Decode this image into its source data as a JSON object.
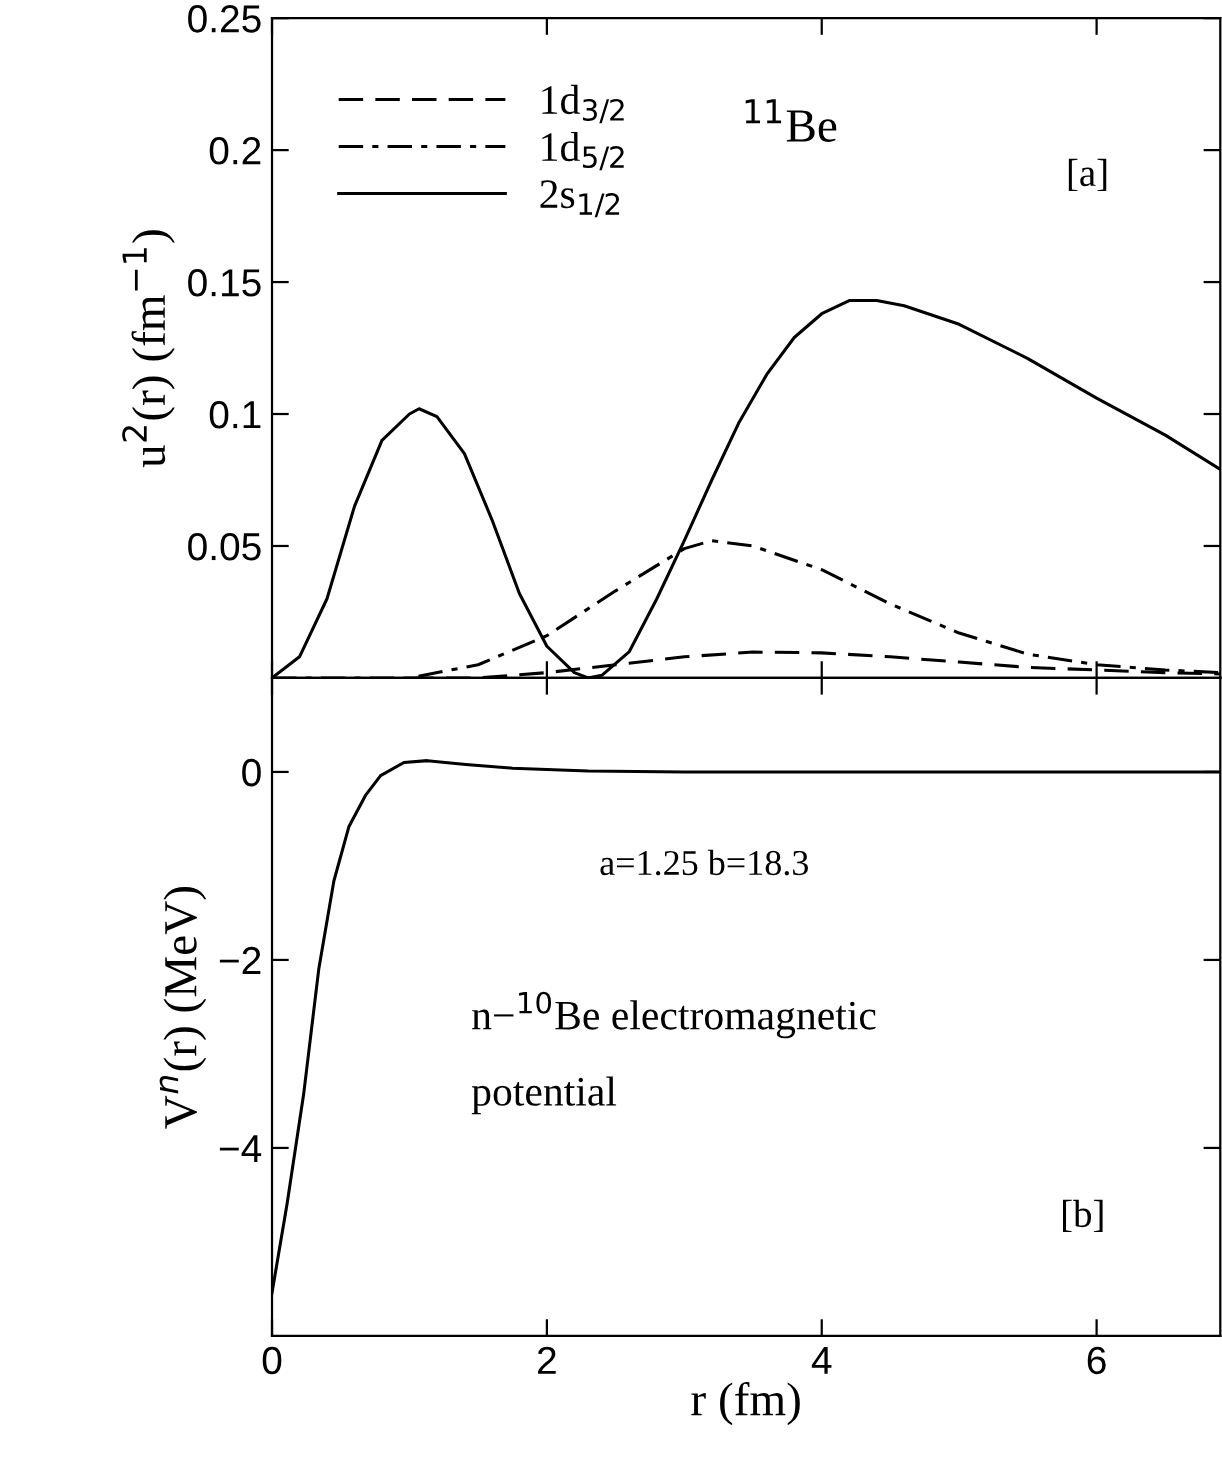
{
  "chart_data": [
    {
      "type": "line",
      "ylabel": "u$^{2}$(r) (fm$^{−1}$)",
      "xlim": [
        0,
        6.9
      ],
      "ylim": [
        0,
        0.25
      ],
      "xticks": [
        0,
        2,
        4,
        6
      ],
      "yticks": [
        0.05,
        0.1,
        0.15,
        0.2,
        0.25
      ],
      "tick_labels": "y",
      "legend": "top left",
      "grid": false,
      "annotations": [
        "$^{11}$Be",
        "[a]"
      ],
      "series": [
        {
          "name": "1d$_{3/2}$",
          "color": "#000000",
          "line_style": "dashed",
          "x": [
            1.0,
            1.5,
            2.0,
            2.5,
            3.0,
            3.5,
            4.0,
            4.5,
            5.0,
            5.5,
            6.0,
            6.5,
            6.9
          ],
          "values": [
            0,
            0,
            0.002,
            0.005,
            0.008,
            0.0098,
            0.0095,
            0.008,
            0.006,
            0.004,
            0.003,
            0.002,
            0.0015
          ]
        },
        {
          "name": "1d$_{5/2}$",
          "color": "#000000",
          "line_style": "dashdot",
          "x": [
            0,
            1.0,
            1.5,
            2.0,
            2.5,
            3.0,
            3.2,
            3.5,
            4.0,
            4.5,
            5.0,
            5.5,
            6.0,
            6.5,
            6.9
          ],
          "values": [
            0,
            0,
            0.005,
            0.016,
            0.033,
            0.049,
            0.052,
            0.05,
            0.041,
            0.028,
            0.017,
            0.009,
            0.005,
            0.003,
            0.002
          ]
        },
        {
          "name": "2s$_{1/2}$",
          "color": "#000000",
          "line_style": "solid",
          "x": [
            0,
            0.2,
            0.4,
            0.6,
            0.8,
            1.0,
            1.07,
            1.2,
            1.4,
            1.6,
            1.8,
            2.0,
            2.2,
            2.3,
            2.4,
            2.6,
            2.8,
            3.0,
            3.2,
            3.4,
            3.6,
            3.8,
            4.0,
            4.2,
            4.4,
            4.6,
            5.0,
            5.5,
            6.0,
            6.5,
            6.9
          ],
          "values": [
            0,
            0.008,
            0.03,
            0.065,
            0.09,
            0.1,
            0.102,
            0.099,
            0.085,
            0.06,
            0.032,
            0.012,
            0.002,
            0,
            0.001,
            0.01,
            0.03,
            0.052,
            0.075,
            0.097,
            0.115,
            0.129,
            0.138,
            0.143,
            0.143,
            0.141,
            0.134,
            0.121,
            0.106,
            0.092,
            0.079
          ]
        }
      ]
    },
    {
      "type": "line",
      "xlabel": "r (fm)",
      "ylabel": "V$^{n}$(r) (MeV)",
      "xlim": [
        0,
        6.9
      ],
      "ylim": [
        -6,
        1
      ],
      "xticks": [
        0,
        2,
        4,
        6
      ],
      "yticks": [
        {
          "value": 0,
          "label": "0"
        },
        {
          "value": -2,
          "label": "−2"
        },
        {
          "value": -4,
          "label": "−4"
        }
      ],
      "grid": false,
      "annotations": [
        "a=1.25 b=18.3",
        "n−$^{10}$Be electromagnetic\n\npotential",
        "[b]"
      ],
      "series": [
        {
          "color": "#000000",
          "line_style": "solid",
          "x": [
            0,
            0.11,
            0.23,
            0.34,
            0.45,
            0.56,
            0.68,
            0.79,
            0.96,
            1.13,
            1.41,
            1.75,
            2.3,
            3.0,
            6.9
          ],
          "values": [
            -5.54,
            -4.59,
            -3.43,
            -2.1,
            -1.16,
            -0.58,
            -0.25,
            -0.04,
            0.1,
            0.12,
            0.08,
            0.04,
            0.01,
            0,
            0
          ]
        }
      ]
    }
  ]
}
